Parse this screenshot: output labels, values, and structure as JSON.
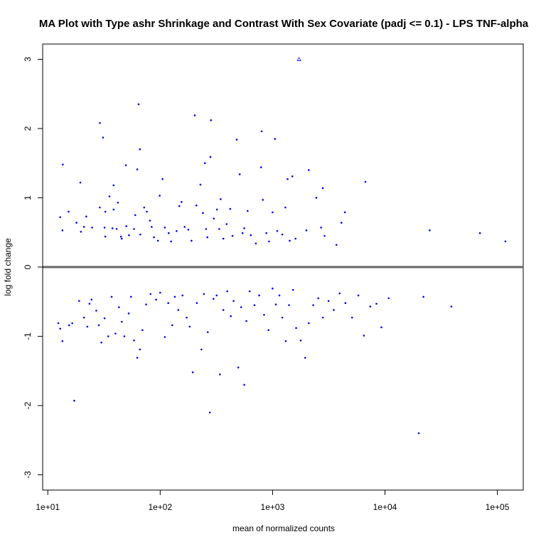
{
  "chart_data": {
    "type": "scatter",
    "title": "MA Plot with Type ashr Shrinkage and Contrast With Sex Covariate (padj <= 0.1) - LPS TNF-alpha",
    "xlabel": "mean of normalized counts",
    "ylabel": "log fold change",
    "x_scale": "log10",
    "xlim": [
      9,
      170000
    ],
    "ylim": [
      -3.22,
      3.22
    ],
    "x_ticks": [
      10,
      100,
      1000,
      10000,
      100000
    ],
    "x_tick_labels": [
      "1e+01",
      "1e+02",
      "1e+03",
      "1e+04",
      "1e+05"
    ],
    "y_ticks": [
      -3,
      -2,
      -1,
      0,
      1,
      2,
      3
    ],
    "y_tick_labels": [
      "-3",
      "-2",
      "-1",
      "0",
      "1",
      "2",
      "3"
    ],
    "grid": false,
    "hline": {
      "y": 0,
      "color": "#666666"
    },
    "point_color": "#0000ff",
    "series": [
      {
        "points": [
          [
            13.6,
            1.48
          ],
          [
            15.3,
            0.8
          ],
          [
            12.9,
            0.72
          ],
          [
            13.5,
            0.53
          ],
          [
            19.5,
            1.22
          ],
          [
            18.0,
            0.64
          ],
          [
            21.0,
            0.58
          ],
          [
            19.7,
            0.51
          ],
          [
            22.0,
            0.73
          ],
          [
            24.8,
            0.57
          ],
          [
            29.1,
            2.08
          ],
          [
            31.0,
            1.87
          ],
          [
            29.0,
            0.86
          ],
          [
            32.5,
            0.8
          ],
          [
            32.0,
            0.57
          ],
          [
            32.5,
            0.44
          ],
          [
            35.4,
            1.02
          ],
          [
            38.5,
            1.18
          ],
          [
            38.5,
            0.83
          ],
          [
            37.6,
            0.56
          ],
          [
            41.0,
            0.55
          ],
          [
            42.0,
            0.93
          ],
          [
            44.8,
            0.44
          ],
          [
            45.5,
            0.41
          ],
          [
            49.5,
            1.47
          ],
          [
            50.0,
            0.59
          ],
          [
            52.7,
            0.46
          ],
          [
            58.5,
            0.55
          ],
          [
            60.0,
            0.75
          ],
          [
            64.3,
            2.35
          ],
          [
            66.0,
            1.7
          ],
          [
            62.5,
            1.41
          ],
          [
            66.5,
            0.47
          ],
          [
            72.0,
            0.86
          ],
          [
            76.0,
            0.8
          ],
          [
            81.0,
            0.67
          ],
          [
            84.0,
            0.58
          ],
          [
            88.0,
            0.43
          ],
          [
            95.5,
            0.38
          ],
          [
            99.0,
            1.03
          ],
          [
            105.0,
            1.27
          ],
          [
            110.0,
            0.57
          ],
          [
            119.0,
            0.49
          ],
          [
            125.0,
            0.37
          ],
          [
            140.0,
            0.52
          ],
          [
            148.0,
            0.88
          ],
          [
            155.0,
            0.94
          ],
          [
            165.0,
            0.58
          ],
          [
            178.0,
            0.54
          ],
          [
            190.0,
            0.38
          ],
          [
            203.0,
            2.19
          ],
          [
            210.0,
            0.89
          ],
          [
            228.0,
            1.19
          ],
          [
            240.0,
            0.78
          ],
          [
            250.0,
            1.5
          ],
          [
            256.0,
            0.55
          ],
          [
            263.0,
            0.43
          ],
          [
            283.0,
            2.12
          ],
          [
            280.0,
            1.59
          ],
          [
            300.0,
            0.7
          ],
          [
            320.0,
            0.83
          ],
          [
            335.0,
            0.55
          ],
          [
            345.0,
            0.98
          ],
          [
            365.0,
            0.41
          ],
          [
            390.0,
            0.62
          ],
          [
            420.0,
            0.84
          ],
          [
            440.0,
            0.45
          ],
          [
            480.0,
            1.84
          ],
          [
            510.0,
            1.34
          ],
          [
            540.0,
            0.49
          ],
          [
            560.0,
            0.56
          ],
          [
            600.0,
            0.81
          ],
          [
            640.0,
            0.46
          ],
          [
            710.0,
            0.34
          ],
          [
            800.0,
            1.96
          ],
          [
            790.0,
            1.44
          ],
          [
            820.0,
            0.97
          ],
          [
            880.0,
            0.49
          ],
          [
            930.0,
            0.37
          ],
          [
            1000.0,
            0.79
          ],
          [
            1050.0,
            1.85
          ],
          [
            1100.0,
            0.52
          ],
          [
            1220.0,
            0.47
          ],
          [
            1300.0,
            0.86
          ],
          [
            1360.0,
            1.27
          ],
          [
            1420.0,
            0.38
          ],
          [
            1500.0,
            1.31
          ],
          [
            1600.0,
            0.41
          ],
          [
            1720.0,
            3.0
          ],
          [
            2000.0,
            0.53
          ],
          [
            2100.0,
            1.4
          ],
          [
            2450.0,
            1.0
          ],
          [
            2700.0,
            0.57
          ],
          [
            2800.0,
            1.14
          ],
          [
            2900.0,
            0.45
          ],
          [
            3700.0,
            0.32
          ],
          [
            4100.0,
            0.64
          ],
          [
            4400.0,
            0.79
          ],
          [
            6700.0,
            1.23
          ],
          [
            25000.0,
            0.53
          ],
          [
            70000.0,
            0.49
          ],
          [
            118000.0,
            0.37
          ],
          [
            12.4,
            -0.81
          ],
          [
            12.9,
            -0.89
          ],
          [
            13.5,
            -1.07
          ],
          [
            15.5,
            -0.84
          ],
          [
            16.5,
            -0.81
          ],
          [
            17.2,
            -1.93
          ],
          [
            19.0,
            -0.49
          ],
          [
            21.0,
            -0.73
          ],
          [
            22.5,
            -0.86
          ],
          [
            23.5,
            -0.53
          ],
          [
            24.5,
            -0.47
          ],
          [
            27.0,
            -0.63
          ],
          [
            28.5,
            -0.84
          ],
          [
            30.0,
            -1.09
          ],
          [
            32.0,
            -0.74
          ],
          [
            34.5,
            -1.0
          ],
          [
            37.0,
            -0.43
          ],
          [
            40.0,
            -0.96
          ],
          [
            43.0,
            -0.58
          ],
          [
            45.5,
            -0.79
          ],
          [
            48.0,
            -1.0
          ],
          [
            52.5,
            -0.67
          ],
          [
            55.0,
            -0.43
          ],
          [
            58.5,
            -1.06
          ],
          [
            62.5,
            -1.31
          ],
          [
            66.0,
            -1.19
          ],
          [
            69.5,
            -0.91
          ],
          [
            75.0,
            -0.54
          ],
          [
            82.0,
            -0.39
          ],
          [
            92.0,
            -0.47
          ],
          [
            100.0,
            -0.37
          ],
          [
            110.0,
            -1.01
          ],
          [
            118.0,
            -0.52
          ],
          [
            128.0,
            -0.84
          ],
          [
            135.0,
            -0.43
          ],
          [
            145.0,
            -0.62
          ],
          [
            158.0,
            -0.41
          ],
          [
            172.0,
            -0.73
          ],
          [
            183.0,
            -0.86
          ],
          [
            195.0,
            -1.52
          ],
          [
            212.0,
            -0.52
          ],
          [
            233.0,
            -1.19
          ],
          [
            245.0,
            -0.39
          ],
          [
            265.0,
            -0.94
          ],
          [
            277.0,
            -2.1
          ],
          [
            298.0,
            -0.46
          ],
          [
            318.0,
            -0.41
          ],
          [
            340.0,
            -1.55
          ],
          [
            365.0,
            -0.62
          ],
          [
            395.0,
            -0.35
          ],
          [
            425.0,
            -0.71
          ],
          [
            450.0,
            -0.49
          ],
          [
            495.0,
            -1.45
          ],
          [
            525.0,
            -0.58
          ],
          [
            560.0,
            -1.7
          ],
          [
            585.0,
            -0.78
          ],
          [
            625.0,
            -0.35
          ],
          [
            690.0,
            -0.55
          ],
          [
            760.0,
            -0.41
          ],
          [
            840.0,
            -0.69
          ],
          [
            920.0,
            -0.91
          ],
          [
            1000.0,
            -0.31
          ],
          [
            1070.0,
            -0.54
          ],
          [
            1150.0,
            -0.41
          ],
          [
            1220.0,
            -0.73
          ],
          [
            1310.0,
            -1.07
          ],
          [
            1400.0,
            -0.55
          ],
          [
            1520.0,
            -0.33
          ],
          [
            1620.0,
            -0.88
          ],
          [
            1780.0,
            -1.06
          ],
          [
            1950.0,
            -1.31
          ],
          [
            2100.0,
            -0.81
          ],
          [
            2300.0,
            -0.55
          ],
          [
            2550.0,
            -0.45
          ],
          [
            2800.0,
            -0.73
          ],
          [
            3150.0,
            -0.49
          ],
          [
            3500.0,
            -0.62
          ],
          [
            3950.0,
            -0.38
          ],
          [
            4450.0,
            -0.52
          ],
          [
            5100.0,
            -0.73
          ],
          [
            5800.0,
            -0.41
          ],
          [
            6500.0,
            -0.99
          ],
          [
            7400.0,
            -0.57
          ],
          [
            8400.0,
            -0.53
          ],
          [
            9300.0,
            -0.87
          ],
          [
            10800.0,
            -0.45
          ],
          [
            20000.0,
            -2.4
          ],
          [
            22000.0,
            -0.43
          ],
          [
            39000.0,
            -0.57
          ]
        ]
      }
    ]
  }
}
